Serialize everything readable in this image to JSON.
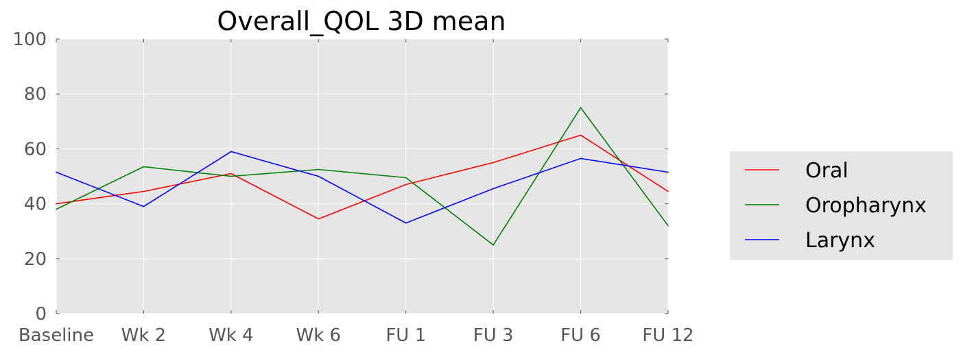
{
  "chart_data": {
    "type": "line",
    "title": "Overall_QOL 3D  mean",
    "xlabel": "",
    "ylabel": "",
    "categories": [
      "Baseline",
      "Wk 2",
      "Wk 4",
      "Wk 6",
      "FU 1",
      "FU 3",
      "FU 6",
      "FU 12"
    ],
    "ylim": [
      0,
      100
    ],
    "yticks": [
      0,
      20,
      40,
      60,
      80,
      100
    ],
    "grid": true,
    "background": "#e5e5e5",
    "legend_position": "right",
    "series": [
      {
        "name": "Oral",
        "color": "#ff0000",
        "values": [
          40,
          44.5,
          51,
          34.5,
          47,
          55,
          65,
          44.5
        ]
      },
      {
        "name": "Oropharynx",
        "color": "#008000",
        "values": [
          38,
          53.5,
          50,
          52.5,
          49.5,
          25,
          75,
          32
        ]
      },
      {
        "name": "Larynx",
        "color": "#0000ff",
        "values": [
          51.5,
          39,
          59,
          50,
          33,
          45.5,
          56.5,
          51.5
        ]
      }
    ]
  }
}
